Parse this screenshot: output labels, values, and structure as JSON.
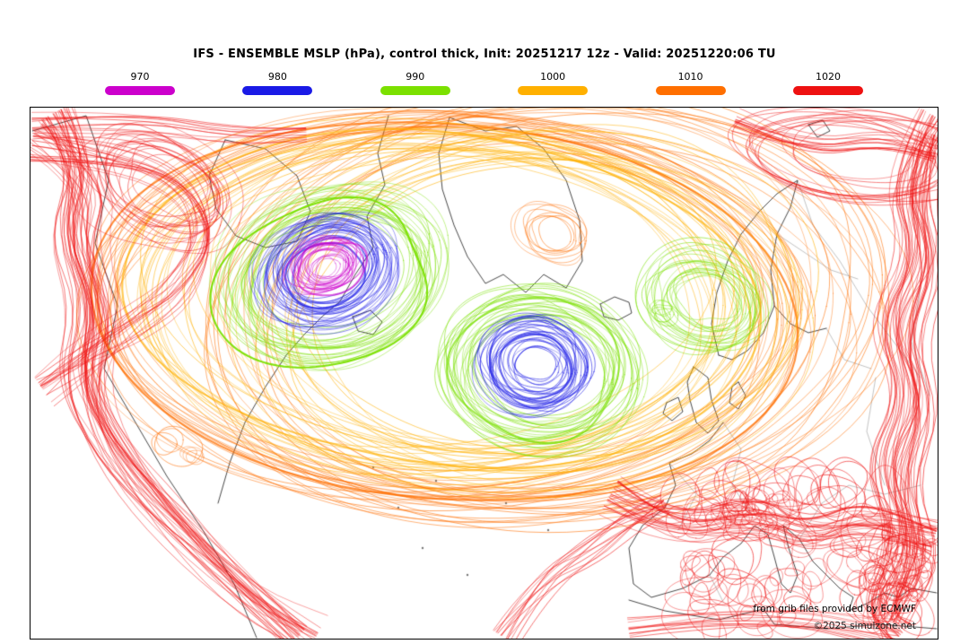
{
  "header": {
    "title": "IFS - ENSEMBLE MSLP (hPa), control thick, Init: 20251217 12z - Valid: 20251220:06 TU"
  },
  "legend": {
    "items": [
      {
        "label": "970",
        "color": "#cc00cc"
      },
      {
        "label": "980",
        "color": "#1a1ae6"
      },
      {
        "label": "990",
        "color": "#7be000"
      },
      {
        "label": "1000",
        "color": "#ffb000"
      },
      {
        "label": "1010",
        "color": "#ff6f00"
      },
      {
        "label": "1020",
        "color": "#ee1111"
      }
    ]
  },
  "footer": {
    "line1": "from grib files provided by ECMWF",
    "line2": "©2025 simulzone.net"
  },
  "chart_data": {
    "type": "contour-spaghetti",
    "title": "IFS - ENSEMBLE MSLP (hPa), control thick",
    "variable": "MSLP",
    "units": "hPa",
    "model": "IFS ENSEMBLE",
    "init": "20251217 12z",
    "valid": "20251220:06 TU",
    "region": "North Atlantic, North America and Europe",
    "levels": [
      970,
      980,
      990,
      1000,
      1010,
      1020
    ],
    "level_colors": {
      "970": "#cc00cc",
      "980": "#1a1ae6",
      "990": "#7be000",
      "1000": "#ffb000",
      "1010": "#ff6f00",
      "1020": "#ee1111"
    },
    "coast_color": "#1a1a1a",
    "border_color": "#9a9a9a",
    "features": [
      {
        "type": "low",
        "region": "eastern Canada / Labrador",
        "approx_min_hPa": 968
      },
      {
        "type": "low",
        "region": "North Atlantic south of Iceland",
        "approx_min_hPa": 976
      },
      {
        "type": "low",
        "region": "Scandinavia / Baltic",
        "approx_min_hPa": 988
      },
      {
        "type": "high",
        "region": "subtropical Atlantic and southern/eastern Europe map edges",
        "approx_hPa": 1020
      }
    ],
    "legend_position": "top",
    "grid": false
  }
}
